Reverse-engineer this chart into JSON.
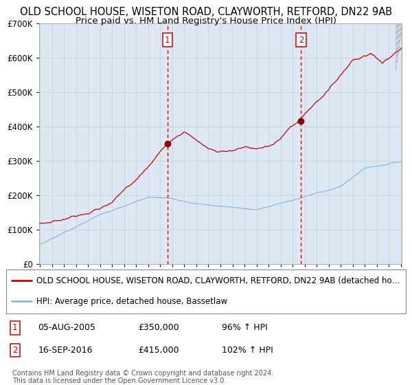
{
  "title1": "OLD SCHOOL HOUSE, WISETON ROAD, CLAYWORTH, RETFORD, DN22 9AB",
  "title2": "Price paid vs. HM Land Registry's House Price Index (HPI)",
  "ylim": [
    0,
    700000
  ],
  "yticks": [
    0,
    100000,
    200000,
    300000,
    400000,
    500000,
    600000,
    700000
  ],
  "ytick_labels": [
    "£0",
    "£100K",
    "£200K",
    "£300K",
    "£400K",
    "£500K",
    "£600K",
    "£700K"
  ],
  "x_start_year": 1995,
  "x_end_year": 2025,
  "background_color": "#ffffff",
  "plot_bg_color": "#dce9f5",
  "grid_color": "#cccccc",
  "hpi_line_color": "#8ab8d8",
  "price_line_color": "#cc0000",
  "sale1_date": 2005.59,
  "sale1_price": 350000,
  "sale2_date": 2016.71,
  "sale2_price": 415000,
  "vline_color": "#dd0000",
  "dot_color": "#880000",
  "legend_line1": "OLD SCHOOL HOUSE, WISETON ROAD, CLAYWORTH, RETFORD, DN22 9AB (detached ho…",
  "legend_line2": "HPI: Average price, detached house, Bassetlaw",
  "table_row1": [
    "1",
    "05-AUG-2005",
    "£350,000",
    "96% ↑ HPI"
  ],
  "table_row2": [
    "2",
    "16-SEP-2016",
    "£415,000",
    "102% ↑ HPI"
  ],
  "footer": "Contains HM Land Registry data © Crown copyright and database right 2024.\nThis data is licensed under the Open Government Licence v3.0.",
  "title_fontsize": 10.5,
  "subtitle_fontsize": 9.5,
  "tick_fontsize": 8.5,
  "legend_fontsize": 8.5
}
